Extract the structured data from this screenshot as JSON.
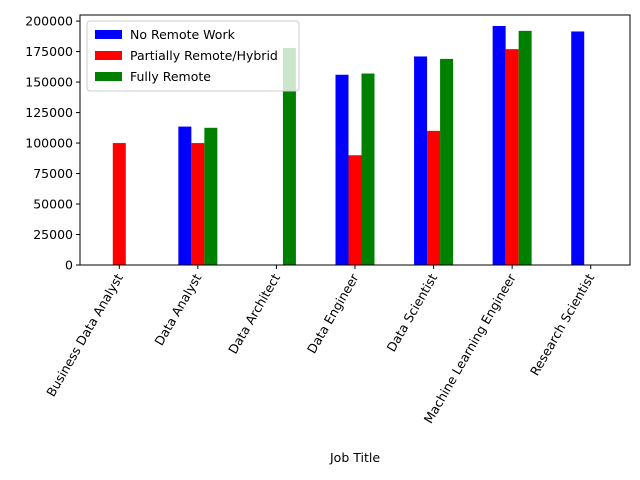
{
  "chart_data": {
    "type": "bar",
    "title": "",
    "xlabel": "Job Title",
    "ylabel": "",
    "ylim": [
      0,
      205000
    ],
    "yticks": [
      0,
      25000,
      50000,
      75000,
      100000,
      125000,
      150000,
      175000,
      200000
    ],
    "categories": [
      "Business Data Analyst",
      "Data Analyst",
      "Data Architect",
      "Data Engineer",
      "Data Scientist",
      "Machine Learning Engineer",
      "Research Scientist"
    ],
    "series": [
      {
        "name": "No Remote Work",
        "color": "#0000ff",
        "values": [
          null,
          113500,
          null,
          156000,
          171000,
          196000,
          191500
        ]
      },
      {
        "name": "Partially Remote/Hybrid",
        "color": "#ff0000",
        "values": [
          100000,
          100000,
          null,
          90000,
          110000,
          177000,
          null
        ]
      },
      {
        "name": "Fully Remote",
        "color": "#008000",
        "values": [
          null,
          112500,
          178000,
          157000,
          169000,
          192000,
          null
        ]
      }
    ],
    "legend_position": "upper-left",
    "grid": false
  }
}
